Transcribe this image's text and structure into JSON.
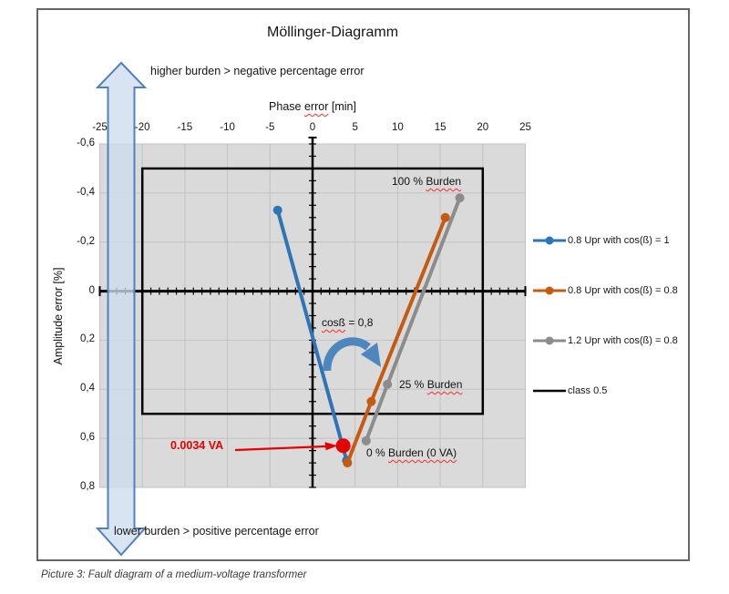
{
  "figure": {
    "title": "Möllinger-Diagramm",
    "top_note": "higher burden > negative percentage error",
    "bottom_note": "lower burden > positive percentage error",
    "caption": "Picture 3: Fault diagram of a medium-voltage transformer"
  },
  "colors": {
    "series_blue": "#2E75B6",
    "series_orange": "#C55A11",
    "series_gray": "#8C8C8C",
    "class_box": "#000000",
    "annotation_red": "#E60000",
    "big_arrow_fill": "rgba(206,220,238,0.78)",
    "big_arrow_border": "#4F81BD",
    "curved_arrow": "#4E86BE",
    "plot_bg": "#DADADA",
    "grid": "#C2C2C2",
    "plot_border": "#A3A3A3"
  },
  "chart_data": {
    "type": "line",
    "title": "Möllinger-Diagramm",
    "xlabel": "Phase error [min]",
    "ylabel": "Amplitude error [%]",
    "xlabel_parts": {
      "pre": "Phase ",
      "wavy": "error",
      "post": " [min]"
    },
    "xlim": [
      -25,
      25
    ],
    "ylim": [
      -0.6,
      0.8
    ],
    "y_axis_negative_up": true,
    "grid": true,
    "x_major_tick": 5,
    "x_minor_tick": 1,
    "y_major_tick": 0.2,
    "y_minor_tick": 0.05,
    "xtick_values": [
      -25,
      -20,
      -15,
      -10,
      -5,
      0,
      5,
      10,
      15,
      20,
      25
    ],
    "xtick_labels": [
      "-25",
      "-20",
      "-15",
      "-10",
      "-5",
      "0",
      "5",
      "10",
      "15",
      "20",
      "25"
    ],
    "ytick_values": [
      -0.6,
      -0.4,
      -0.2,
      0,
      0.2,
      0.4,
      0.6,
      0.8
    ],
    "ytick_labels": [
      "-0,6",
      "-0,4",
      "-0,2",
      "0",
      "0,2",
      "0,4",
      "0,6",
      "0,8"
    ],
    "legend_position": "right",
    "series": [
      {
        "name": "0.8 Upr with cos(ß) = 1",
        "color": "#2E75B6",
        "points": [
          [
            -4.1,
            -0.33
          ],
          [
            4.0,
            0.69
          ]
        ],
        "point_burdens": [
          "100 % Burden",
          "0 % Burden"
        ]
      },
      {
        "name": "0.8 Upr with cos(ß) = 0.8",
        "color": "#C55A11",
        "points": [
          [
            4.1,
            0.7
          ],
          [
            6.9,
            0.45
          ],
          [
            15.6,
            -0.3
          ]
        ],
        "point_burdens": [
          "0 % Burden",
          "25 % Burden",
          "100 % Burden"
        ]
      },
      {
        "name": "1.2 Upr with cos(ß) = 0.8",
        "color": "#8C8C8C",
        "points": [
          [
            6.3,
            0.61
          ],
          [
            8.8,
            0.38
          ],
          [
            17.3,
            -0.38
          ]
        ],
        "point_burdens": [
          "0 % Burden",
          "25 % Burden",
          "100 % Burden"
        ]
      }
    ],
    "class_limit": {
      "name": "class 0.5",
      "color": "#000000",
      "x_range": [
        -20,
        20
      ],
      "y_range": [
        -0.5,
        0.5
      ]
    },
    "legend": [
      {
        "label": "0.8 Upr with cos(ß) = 1",
        "color": "#2E75B6",
        "marker": true
      },
      {
        "label": "0.8 Upr with cos(ß) = 0.8",
        "color": "#C55A11",
        "marker": true
      },
      {
        "label": "1.2 Upr with cos(ß) = 0.8",
        "color": "#8C8C8C",
        "marker": true
      },
      {
        "label": "class 0.5",
        "color": "#000000",
        "marker": false
      }
    ],
    "annotations": {
      "burden100": {
        "pre": "100 % ",
        "wavy": "Burden",
        "post": ""
      },
      "burden25": {
        "pre": "25 % ",
        "wavy": "Burden",
        "post": ""
      },
      "burden0": {
        "pre": "0 % ",
        "wavy": "Burden (0 VA)",
        "post": ""
      },
      "cosbeta": {
        "pre": "",
        "wavy": "cosß",
        "post": " = 0,8"
      },
      "zero_va": {
        "text": "0.0034 VA",
        "point": [
          3.6,
          0.63
        ]
      }
    }
  }
}
